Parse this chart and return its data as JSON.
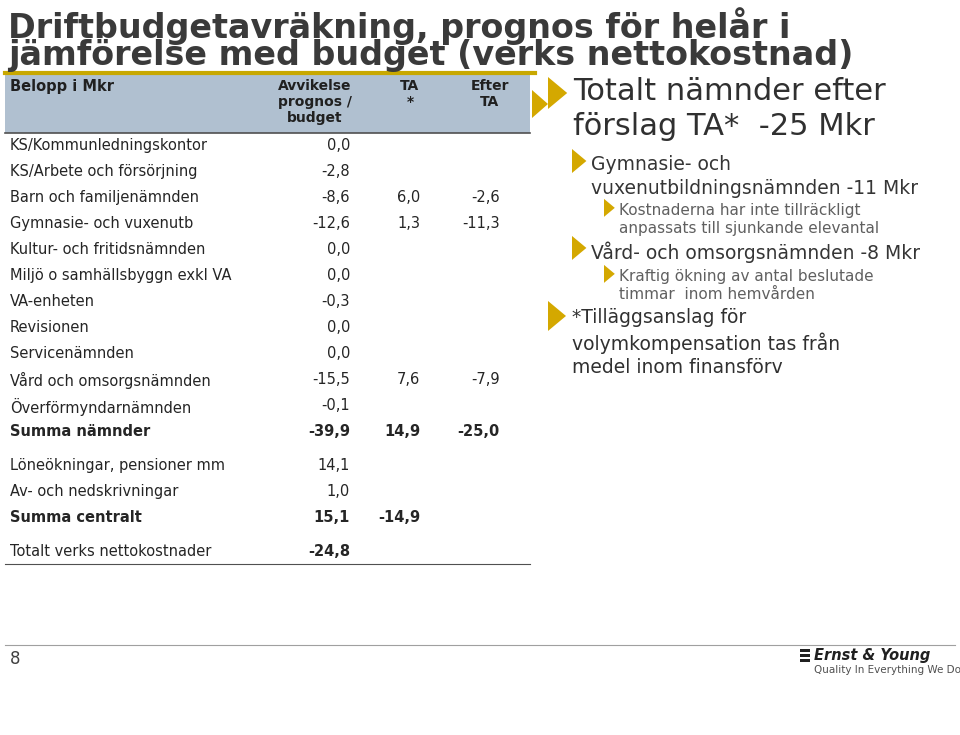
{
  "title_line1": "Driftbudgetavräkning, prognos för helår i",
  "title_line2": "jämförelse med budget (verks nettokostnad)",
  "title_color": "#3A3A3A",
  "title_fontsize": 24,
  "gold_line_color": "#C8A800",
  "header_bg_color": "#B0C0D0",
  "header_text_color": "#202020",
  "rows": [
    {
      "label": "KS/Kommunledningskontor",
      "col1": "0,0",
      "col2": "",
      "col3": "",
      "bold": false,
      "sep_before": false
    },
    {
      "label": "KS/Arbete och försörjning",
      "col1": "-2,8",
      "col2": "",
      "col3": "",
      "bold": false,
      "sep_before": false
    },
    {
      "label": "Barn och familjenämnden",
      "col1": "-8,6",
      "col2": "6,0",
      "col3": "-2,6",
      "bold": false,
      "sep_before": false
    },
    {
      "label": "Gymnasie- och vuxenutb",
      "col1": "-12,6",
      "col2": "1,3",
      "col3": "-11,3",
      "bold": false,
      "sep_before": false
    },
    {
      "label": "Kultur- och fritidsnämnden",
      "col1": "0,0",
      "col2": "",
      "col3": "",
      "bold": false,
      "sep_before": false
    },
    {
      "label": "Miljö o samhällsbyggn exkl VA",
      "col1": "0,0",
      "col2": "",
      "col3": "",
      "bold": false,
      "sep_before": false
    },
    {
      "label": "VA-enheten",
      "col1": "-0,3",
      "col2": "",
      "col3": "",
      "bold": false,
      "sep_before": false
    },
    {
      "label": "Revisionen",
      "col1": "0,0",
      "col2": "",
      "col3": "",
      "bold": false,
      "sep_before": false
    },
    {
      "label": "Servicenämnden",
      "col1": "0,0",
      "col2": "",
      "col3": "",
      "bold": false,
      "sep_before": false
    },
    {
      "label": "Vård och omsorgsnämnden",
      "col1": "-15,5",
      "col2": "7,6",
      "col3": "-7,9",
      "bold": false,
      "sep_before": false
    },
    {
      "label": "Överförmyndarnämnden",
      "col1": "-0,1",
      "col2": "",
      "col3": "",
      "bold": false,
      "sep_before": false
    },
    {
      "label": "Summa nämnder",
      "col1": "-39,9",
      "col2": "14,9",
      "col3": "-25,0",
      "bold": true,
      "sep_before": false
    },
    {
      "label": "Löneökningar, pensioner mm",
      "col1": "14,1",
      "col2": "",
      "col3": "",
      "bold": false,
      "sep_before": true
    },
    {
      "label": "Av- och nedskrivningar",
      "col1": "1,0",
      "col2": "",
      "col3": "",
      "bold": false,
      "sep_before": false
    },
    {
      "label": "Summa centralt",
      "col1": "15,1",
      "col2": "-14,9",
      "col3": "",
      "bold": true,
      "sep_before": false
    },
    {
      "label": "Totalt verks nettokostnader",
      "col1": "-24,8",
      "col2": "",
      "col3": "",
      "bold": false,
      "col1_bold": true,
      "sep_before": true
    }
  ],
  "right_panel": {
    "bullet_color": "#D4A800",
    "header": "Totalt nämnder efter\nförslag TA*  -25 Mkr",
    "header_fontsize": 22,
    "items": [
      {
        "level": 1,
        "text": "Gymnasie- och\nvuxenutbildningsnämnden -11 Mkr",
        "fontsize": 13.5
      },
      {
        "level": 2,
        "text": "Kostnaderna har inte tillräckligt\nanpassats till sjunkande elevantal",
        "fontsize": 11
      },
      {
        "level": 1,
        "text": "Vård- och omsorgsnämnden -8 Mkr",
        "fontsize": 13.5
      },
      {
        "level": 2,
        "text": "Kraftig ökning av antal beslutade\ntimmar  inom hemvården",
        "fontsize": 11
      },
      {
        "level": 0,
        "text": "*Tilläggsanslag för\nvolymkompensation tas från\nmedel inom finansförv",
        "fontsize": 13.5
      }
    ]
  },
  "footer_page": "8",
  "bg_color": "#FFFFFF"
}
